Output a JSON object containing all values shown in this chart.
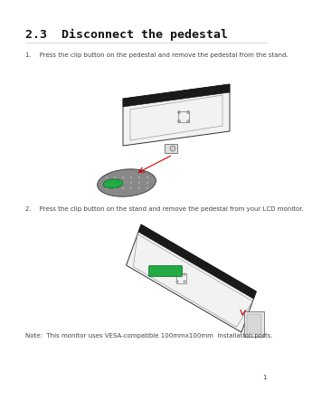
{
  "title": "2.3  Disconnect the pedestal",
  "step1_text": "1.    Press the clip button on the pedestal and remove the pedestal from the stand.",
  "step2_text": "2.    Press the clip button on the stand and remove the pedestal from your LCD monitor.",
  "note_text": "Note:  This monitor uses VESA-compatible 100mmx100mm  installation ports.",
  "page_number": "1",
  "bg_color": "#ffffff",
  "title_font_size": 9.5,
  "body_font_size": 5.0,
  "note_font_size": 5.0,
  "page_num_font_size": 5,
  "title_color": "#111111",
  "body_color": "#444444"
}
